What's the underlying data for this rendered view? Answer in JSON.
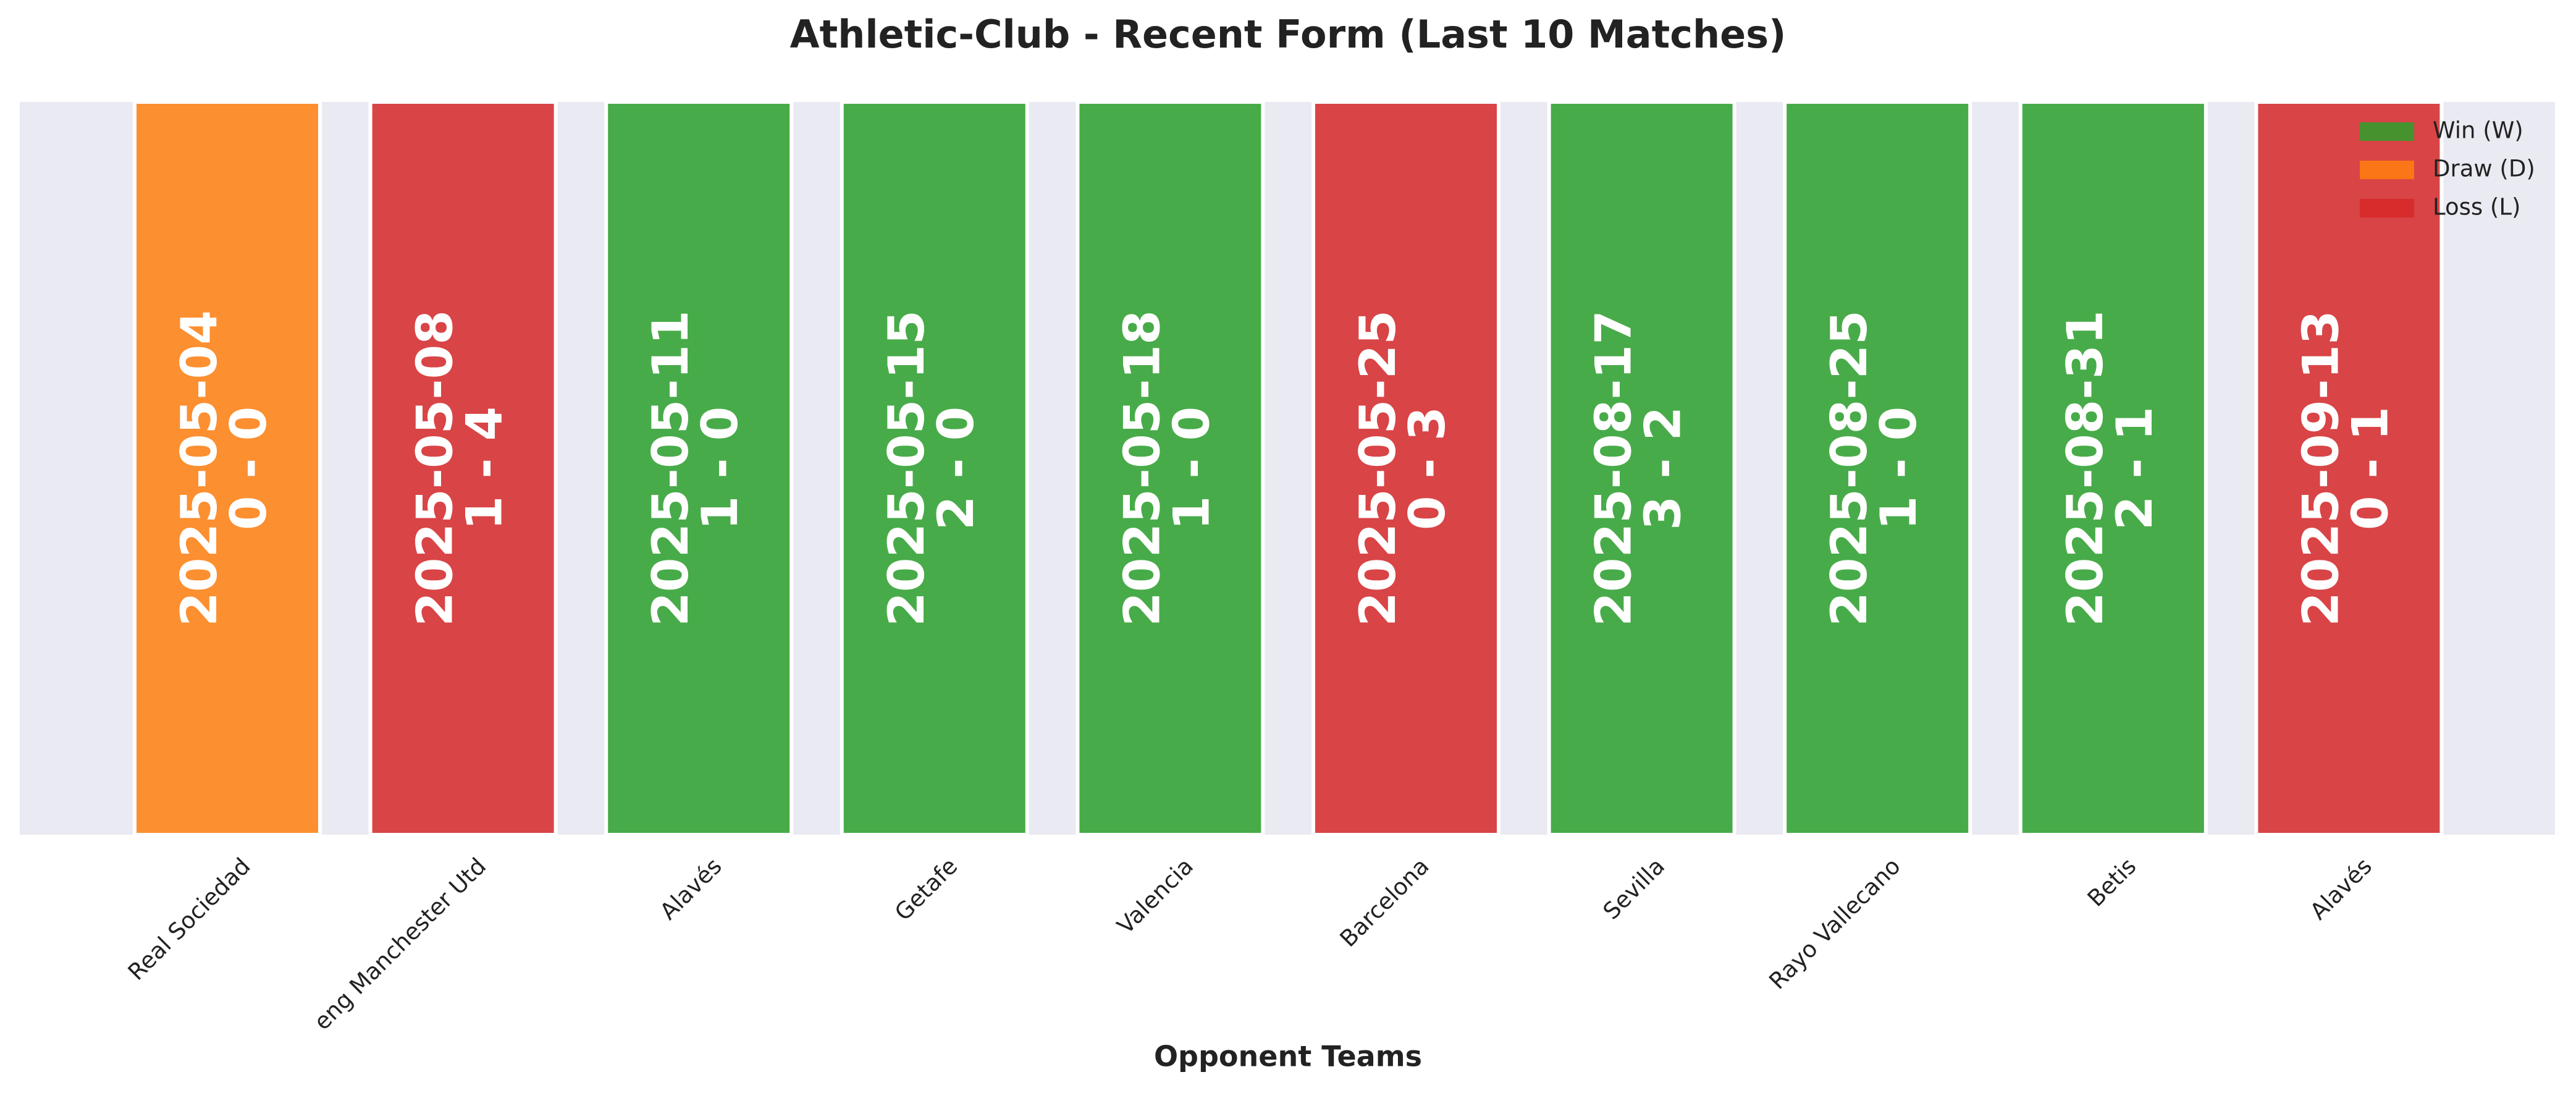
{
  "chart_data": {
    "type": "bar",
    "title": "Athletic-Club - Recent Form (Last 10 Matches)",
    "x_label": "Opponent Teams",
    "categories": [
      "Real Sociedad",
      "eng Manchester Utd",
      "Alavés",
      "Getafe",
      "Valencia",
      "Barcelona",
      "Sevilla",
      "Rayo Vallecano",
      "Betis",
      "Alavés"
    ],
    "values": [
      1,
      1,
      1,
      1,
      1,
      1,
      1,
      1,
      1,
      1
    ],
    "dates": [
      "2025-05-04",
      "2025-05-08",
      "2025-05-11",
      "2025-05-15",
      "2025-05-18",
      "2025-05-25",
      "2025-08-17",
      "2025-08-25",
      "2025-08-31",
      "2025-09-13"
    ],
    "scores": [
      "0 - 0",
      "1 - 4",
      "1 - 0",
      "2 - 0",
      "1 - 0",
      "0 - 3",
      "3 - 2",
      "1 - 0",
      "2 - 1",
      "0 - 1"
    ],
    "colors": [
      "#ff7f0e",
      "#d62728",
      "#2ca02c",
      "#2ca02c",
      "#2ca02c",
      "#d62728",
      "#2ca02c",
      "#2ca02c",
      "#2ca02c",
      "#d62728"
    ],
    "ylim": [
      0,
      1
    ],
    "legend": [
      {
        "name": "Win (W)",
        "color": "#2ca02c"
      },
      {
        "name": "Draw (D)",
        "color": "#ff7f0e"
      },
      {
        "name": "Loss (L)",
        "color": "#d62728"
      }
    ],
    "legend_position": "upper right"
  }
}
